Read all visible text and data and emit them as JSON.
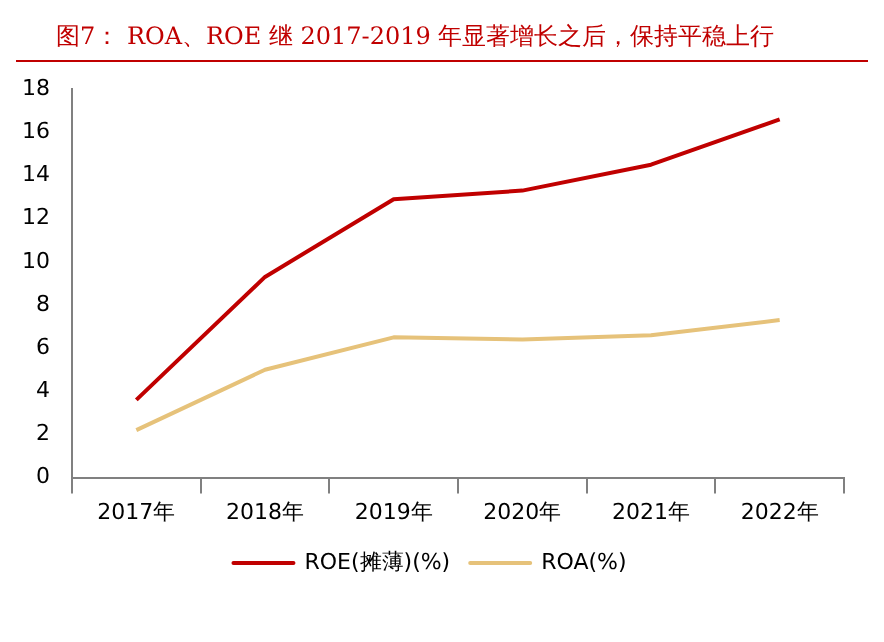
{
  "chart_data": {
    "type": "line",
    "title": "图7：  ROA、ROE 继 2017-2019 年显著增长之后，保持平稳上行",
    "categories": [
      "2017年",
      "2018年",
      "2019年",
      "2020年",
      "2021年",
      "2022年"
    ],
    "series": [
      {
        "name": "ROE(摊薄)(%)",
        "color": "#c00000",
        "values": [
          3.6,
          9.3,
          12.9,
          13.3,
          14.5,
          16.6
        ]
      },
      {
        "name": "ROA(%)",
        "color": "#e6c27a",
        "values": [
          2.2,
          5.0,
          6.5,
          6.4,
          6.6,
          7.3
        ]
      }
    ],
    "ylim": [
      0,
      18
    ],
    "yticks": [
      0,
      2,
      4,
      6,
      8,
      10,
      12,
      14,
      16,
      18
    ],
    "grid": false,
    "legend": "bottom",
    "marker": "none",
    "line_style": "solid"
  }
}
